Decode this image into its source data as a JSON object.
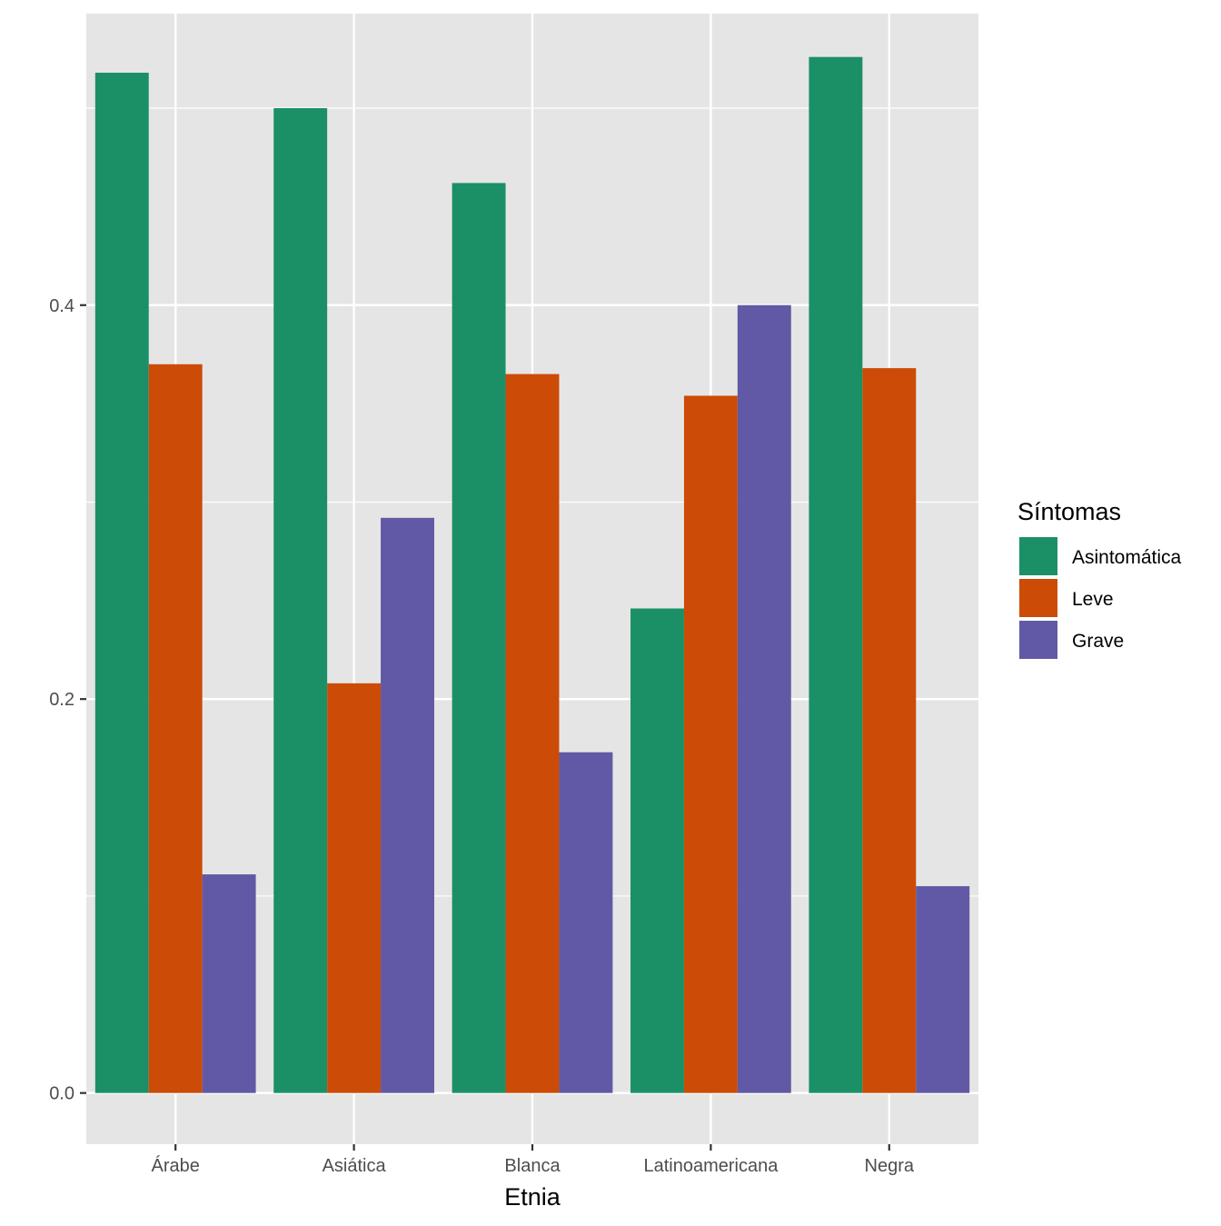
{
  "chart_data": {
    "type": "bar",
    "title": "",
    "xlabel": "Etnia",
    "ylabel": "",
    "categories": [
      "Árabe",
      "Asiática",
      "Blanca",
      "Latinoamericana",
      "Negra"
    ],
    "series": [
      {
        "name": "Asintomática",
        "color": "#1b9066",
        "values": [
          0.518,
          0.5,
          0.462,
          0.246,
          0.526
        ]
      },
      {
        "name": "Leve",
        "color": "#cc4b07",
        "values": [
          0.37,
          0.208,
          0.365,
          0.354,
          0.368
        ]
      },
      {
        "name": "Grave",
        "color": "#6159a5",
        "values": [
          0.111,
          0.292,
          0.173,
          0.4,
          0.105
        ]
      }
    ],
    "ylim": [
      -0.026,
      0.548
    ],
    "yticks": [
      0.0,
      0.2,
      0.4
    ],
    "ytick_labels": [
      "0.0",
      "0.2",
      "0.4"
    ],
    "grid": true,
    "legend": {
      "title": "Síntomas",
      "placement": "right"
    },
    "panel_background": "#e5e5e5",
    "gridline_color": "#ffffff"
  }
}
